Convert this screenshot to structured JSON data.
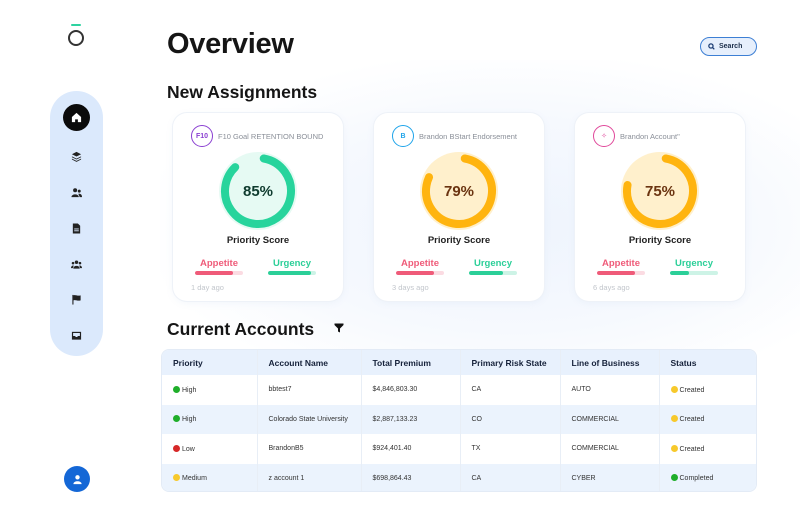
{
  "app": {
    "logo": "O-logo"
  },
  "header": {
    "title": "Overview",
    "search_label": "Search"
  },
  "sidebar": {
    "items": [
      {
        "name": "home",
        "icon": "home-icon",
        "active": true
      },
      {
        "name": "layers",
        "icon": "layers-icon",
        "active": false
      },
      {
        "name": "users",
        "icon": "users-icon",
        "active": false
      },
      {
        "name": "documents",
        "icon": "document-icon",
        "active": false
      },
      {
        "name": "groups",
        "icon": "group-icon",
        "active": false
      },
      {
        "name": "flags",
        "icon": "flag-icon",
        "active": false
      },
      {
        "name": "inbox",
        "icon": "inbox-icon",
        "active": false
      }
    ],
    "user_icon": "user-icon"
  },
  "assignments": {
    "title": "New Assignments",
    "cards": [
      {
        "badge_text": "F10",
        "badge_color": "#8a3fd1",
        "name": "F10 Goal RETENTION BOUND",
        "score": 85,
        "score_text": "85%",
        "ring_color": "#27d49c",
        "ring_bg": "#e6faf3",
        "text_color": "#0f3b2e",
        "score_label": "Priority Score",
        "appetite_label": "Appetite",
        "appetite_pct": 80,
        "urgency_label": "Urgency",
        "urgency_pct": 90,
        "time_ago": "1 day ago"
      },
      {
        "badge_text": "B",
        "badge_color": "#1ea4ea",
        "name": "Brandon BStart Endorsement",
        "score": 79,
        "score_text": "79%",
        "ring_color": "#ffb40f",
        "ring_bg": "#fff0cc",
        "text_color": "#6b3410",
        "score_label": "Priority Score",
        "appetite_label": "Appetite",
        "appetite_pct": 80,
        "urgency_label": "Urgency",
        "urgency_pct": 70,
        "time_ago": "3 days ago"
      },
      {
        "badge_text": "✧",
        "badge_color": "#e0479a",
        "name": "Brandon Account\"",
        "score": 75,
        "score_text": "75%",
        "ring_color": "#ffb40f",
        "ring_bg": "#fff0cc",
        "text_color": "#6b3410",
        "score_label": "Priority Score",
        "appetite_label": "Appetite",
        "appetite_pct": 80,
        "urgency_label": "Urgency",
        "urgency_pct": 40,
        "time_ago": "6 days ago"
      }
    ]
  },
  "accounts": {
    "title": "Current Accounts",
    "filter_icon": "filter-icon",
    "columns": [
      "Priority",
      "Account Name",
      "Total Premium",
      "Primary Risk State",
      "Line of Business",
      "Status"
    ],
    "rows": [
      {
        "priority": "High",
        "priority_color": "#1fae2a",
        "name": "bbtest7",
        "premium": "$4,846,803.30",
        "state": "CA",
        "lob": "AUTO",
        "status": "Created",
        "status_color": "#f7c92c"
      },
      {
        "priority": "High",
        "priority_color": "#1fae2a",
        "name": "Colorado State University",
        "premium": "$2,887,133.23",
        "state": "CO",
        "lob": "COMMERCIAL",
        "status": "Created",
        "status_color": "#f7c92c"
      },
      {
        "priority": "Low",
        "priority_color": "#d62828",
        "name": "BrandonB5",
        "premium": "$924,401.40",
        "state": "TX",
        "lob": "COMMERCIAL",
        "status": "Created",
        "status_color": "#f7c92c"
      },
      {
        "priority": "Medium",
        "priority_color": "#f7c92c",
        "name": "z account 1",
        "premium": "$698,864.43",
        "state": "CA",
        "lob": "CYBER",
        "status": "Completed",
        "status_color": "#1fae2a"
      }
    ]
  }
}
